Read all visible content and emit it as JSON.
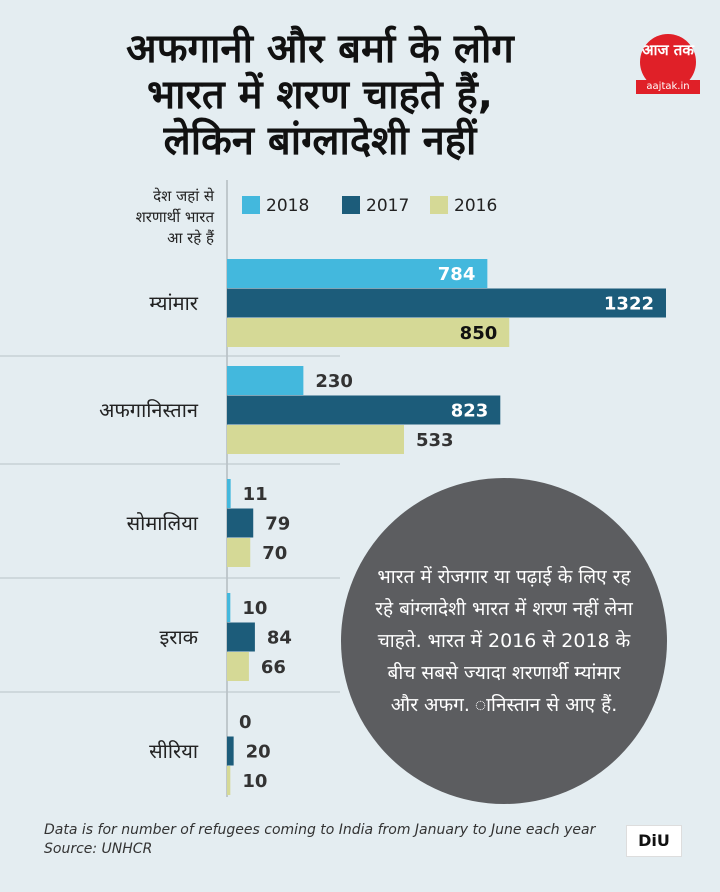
{
  "header": {
    "title_lines": [
      "अफगानी और बर्मा के लोग",
      "भारत में शरण चाहते हैं,",
      "लेकिन बांग्लादेशी नहीं"
    ]
  },
  "logo": {
    "brand": "आज तक",
    "site": "aajtak.in"
  },
  "chart_data": {
    "type": "bar",
    "orientation": "horizontal",
    "title": "अफगानी और बर्मा के लोग भारत में शरण चाहते हैं, लेकिन बांग्लादेशी नहीं",
    "ylabel_lines": [
      "देश जहां से",
      "शरणार्थी भारत",
      "आ रहे हैं"
    ],
    "categories": [
      "म्यांमार",
      "अफगानिस्तान",
      "सोमालिया",
      "इराक",
      "सीरिया"
    ],
    "series": [
      {
        "name": "2018",
        "color": "#43b8dd",
        "values": [
          784,
          230,
          11,
          10,
          0
        ]
      },
      {
        "name": "2017",
        "color": "#1c5c7a",
        "values": [
          1322,
          823,
          79,
          84,
          20
        ]
      },
      {
        "name": "2016",
        "color": "#d5d996",
        "values": [
          850,
          533,
          70,
          66,
          10
        ]
      }
    ],
    "xlim": [
      0,
      1322
    ],
    "legend_position": "top",
    "grid": false
  },
  "annotation": {
    "text": "भारत में रोजगार या पढ़ाई के लिए रह रहे बांग्लादेशी भारत में शरण नहीं लेना चाहते. भारत में 2016 से 2018 के बीच सबसे ज्यादा शरणार्थी म्यांमार और अफग. ानिस्तान से आए हैं."
  },
  "footer": {
    "note": "Data is for number of refugees coming to India from January to June each year",
    "source": "Source: UNHCR",
    "badge": "DiU"
  }
}
